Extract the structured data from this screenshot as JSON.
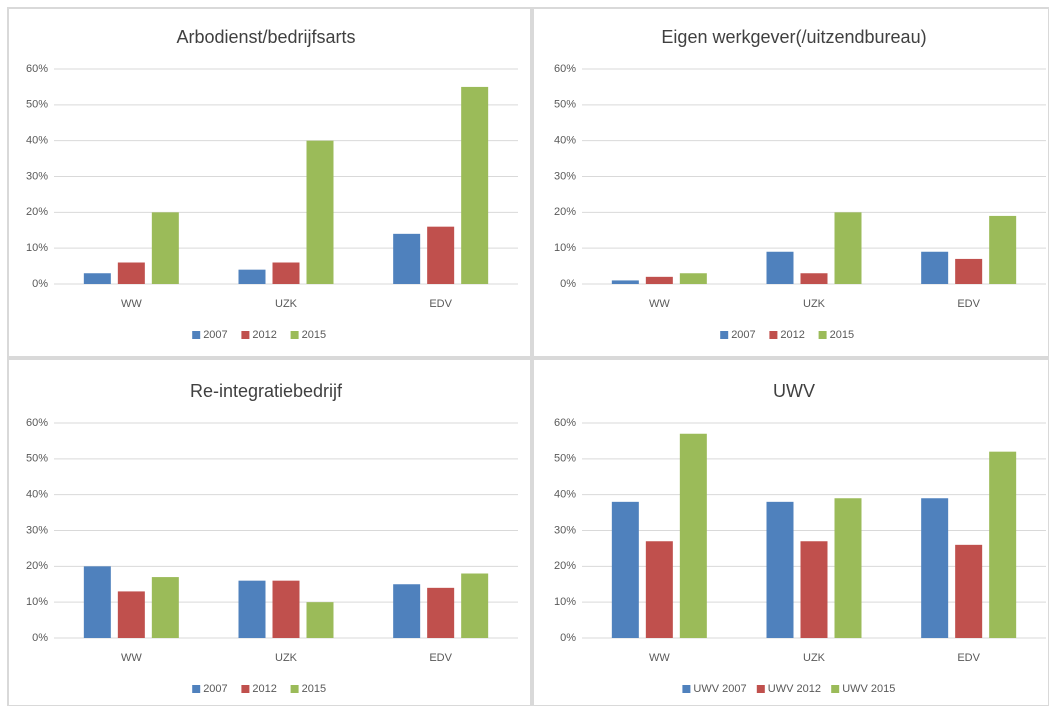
{
  "chart_data": [
    {
      "type": "bar",
      "title": "Arbodienst/bedrijfsarts",
      "categories": [
        "WW",
        "UZK",
        "EDV"
      ],
      "series": [
        {
          "name": "2007",
          "color": "#4f81bd",
          "values": [
            3,
            4,
            14
          ]
        },
        {
          "name": "2012",
          "color": "#c0504d",
          "values": [
            6,
            6,
            16
          ]
        },
        {
          "name": "2015",
          "color": "#9bbb59",
          "values": [
            20,
            40,
            55
          ]
        }
      ],
      "ylim": [
        0,
        60
      ],
      "yticks": [
        {
          "value": 0,
          "label": "0%"
        },
        {
          "value": 10,
          "label": "10%"
        },
        {
          "value": 20,
          "label": "20%"
        },
        {
          "value": 30,
          "label": "30%"
        },
        {
          "value": 40,
          "label": "40%"
        },
        {
          "value": 50,
          "label": "50%"
        },
        {
          "value": 60,
          "label": "60%"
        }
      ],
      "grid": true,
      "legend": "bottom"
    },
    {
      "type": "bar",
      "title": "Eigen werkgever(/uitzendbureau)",
      "categories": [
        "WW",
        "UZK",
        "EDV"
      ],
      "series": [
        {
          "name": "2007",
          "color": "#4f81bd",
          "values": [
            1,
            9,
            9
          ]
        },
        {
          "name": "2012",
          "color": "#c0504d",
          "values": [
            2,
            3,
            7
          ]
        },
        {
          "name": "2015",
          "color": "#9bbb59",
          "values": [
            3,
            20,
            19
          ]
        }
      ],
      "ylim": [
        0,
        60
      ],
      "yticks": [
        {
          "value": 0,
          "label": "0%"
        },
        {
          "value": 10,
          "label": "10%"
        },
        {
          "value": 20,
          "label": "20%"
        },
        {
          "value": 30,
          "label": "30%"
        },
        {
          "value": 40,
          "label": "40%"
        },
        {
          "value": 50,
          "label": "50%"
        },
        {
          "value": 60,
          "label": "60%"
        }
      ],
      "grid": true,
      "legend": "bottom"
    },
    {
      "type": "bar",
      "title": "Re-integratiebedrijf",
      "categories": [
        "WW",
        "UZK",
        "EDV"
      ],
      "series": [
        {
          "name": "2007",
          "color": "#4f81bd",
          "values": [
            20,
            16,
            15
          ]
        },
        {
          "name": "2012",
          "color": "#c0504d",
          "values": [
            13,
            16,
            14
          ]
        },
        {
          "name": "2015",
          "color": "#9bbb59",
          "values": [
            17,
            10,
            18
          ]
        }
      ],
      "ylim": [
        0,
        60
      ],
      "yticks": [
        {
          "value": 0,
          "label": "0%"
        },
        {
          "value": 10,
          "label": "10%"
        },
        {
          "value": 20,
          "label": "20%"
        },
        {
          "value": 30,
          "label": "30%"
        },
        {
          "value": 40,
          "label": "40%"
        },
        {
          "value": 50,
          "label": "50%"
        },
        {
          "value": 60,
          "label": "60%"
        }
      ],
      "grid": true,
      "legend": "bottom"
    },
    {
      "type": "bar",
      "title": "UWV",
      "categories": [
        "WW",
        "UZK",
        "EDV"
      ],
      "series": [
        {
          "name": "UWV 2007",
          "color": "#4f81bd",
          "values": [
            38,
            38,
            39
          ]
        },
        {
          "name": "UWV 2012",
          "color": "#c0504d",
          "values": [
            27,
            27,
            26
          ]
        },
        {
          "name": "UWV 2015",
          "color": "#9bbb59",
          "values": [
            57,
            39,
            52
          ]
        }
      ],
      "ylim": [
        0,
        60
      ],
      "yticks": [
        {
          "value": 0,
          "label": "0%"
        },
        {
          "value": 10,
          "label": "10%"
        },
        {
          "value": 20,
          "label": "20%"
        },
        {
          "value": 30,
          "label": "30%"
        },
        {
          "value": 40,
          "label": "40%"
        },
        {
          "value": 50,
          "label": "50%"
        },
        {
          "value": 60,
          "label": "60%"
        }
      ],
      "grid": true,
      "legend": "bottom"
    }
  ]
}
